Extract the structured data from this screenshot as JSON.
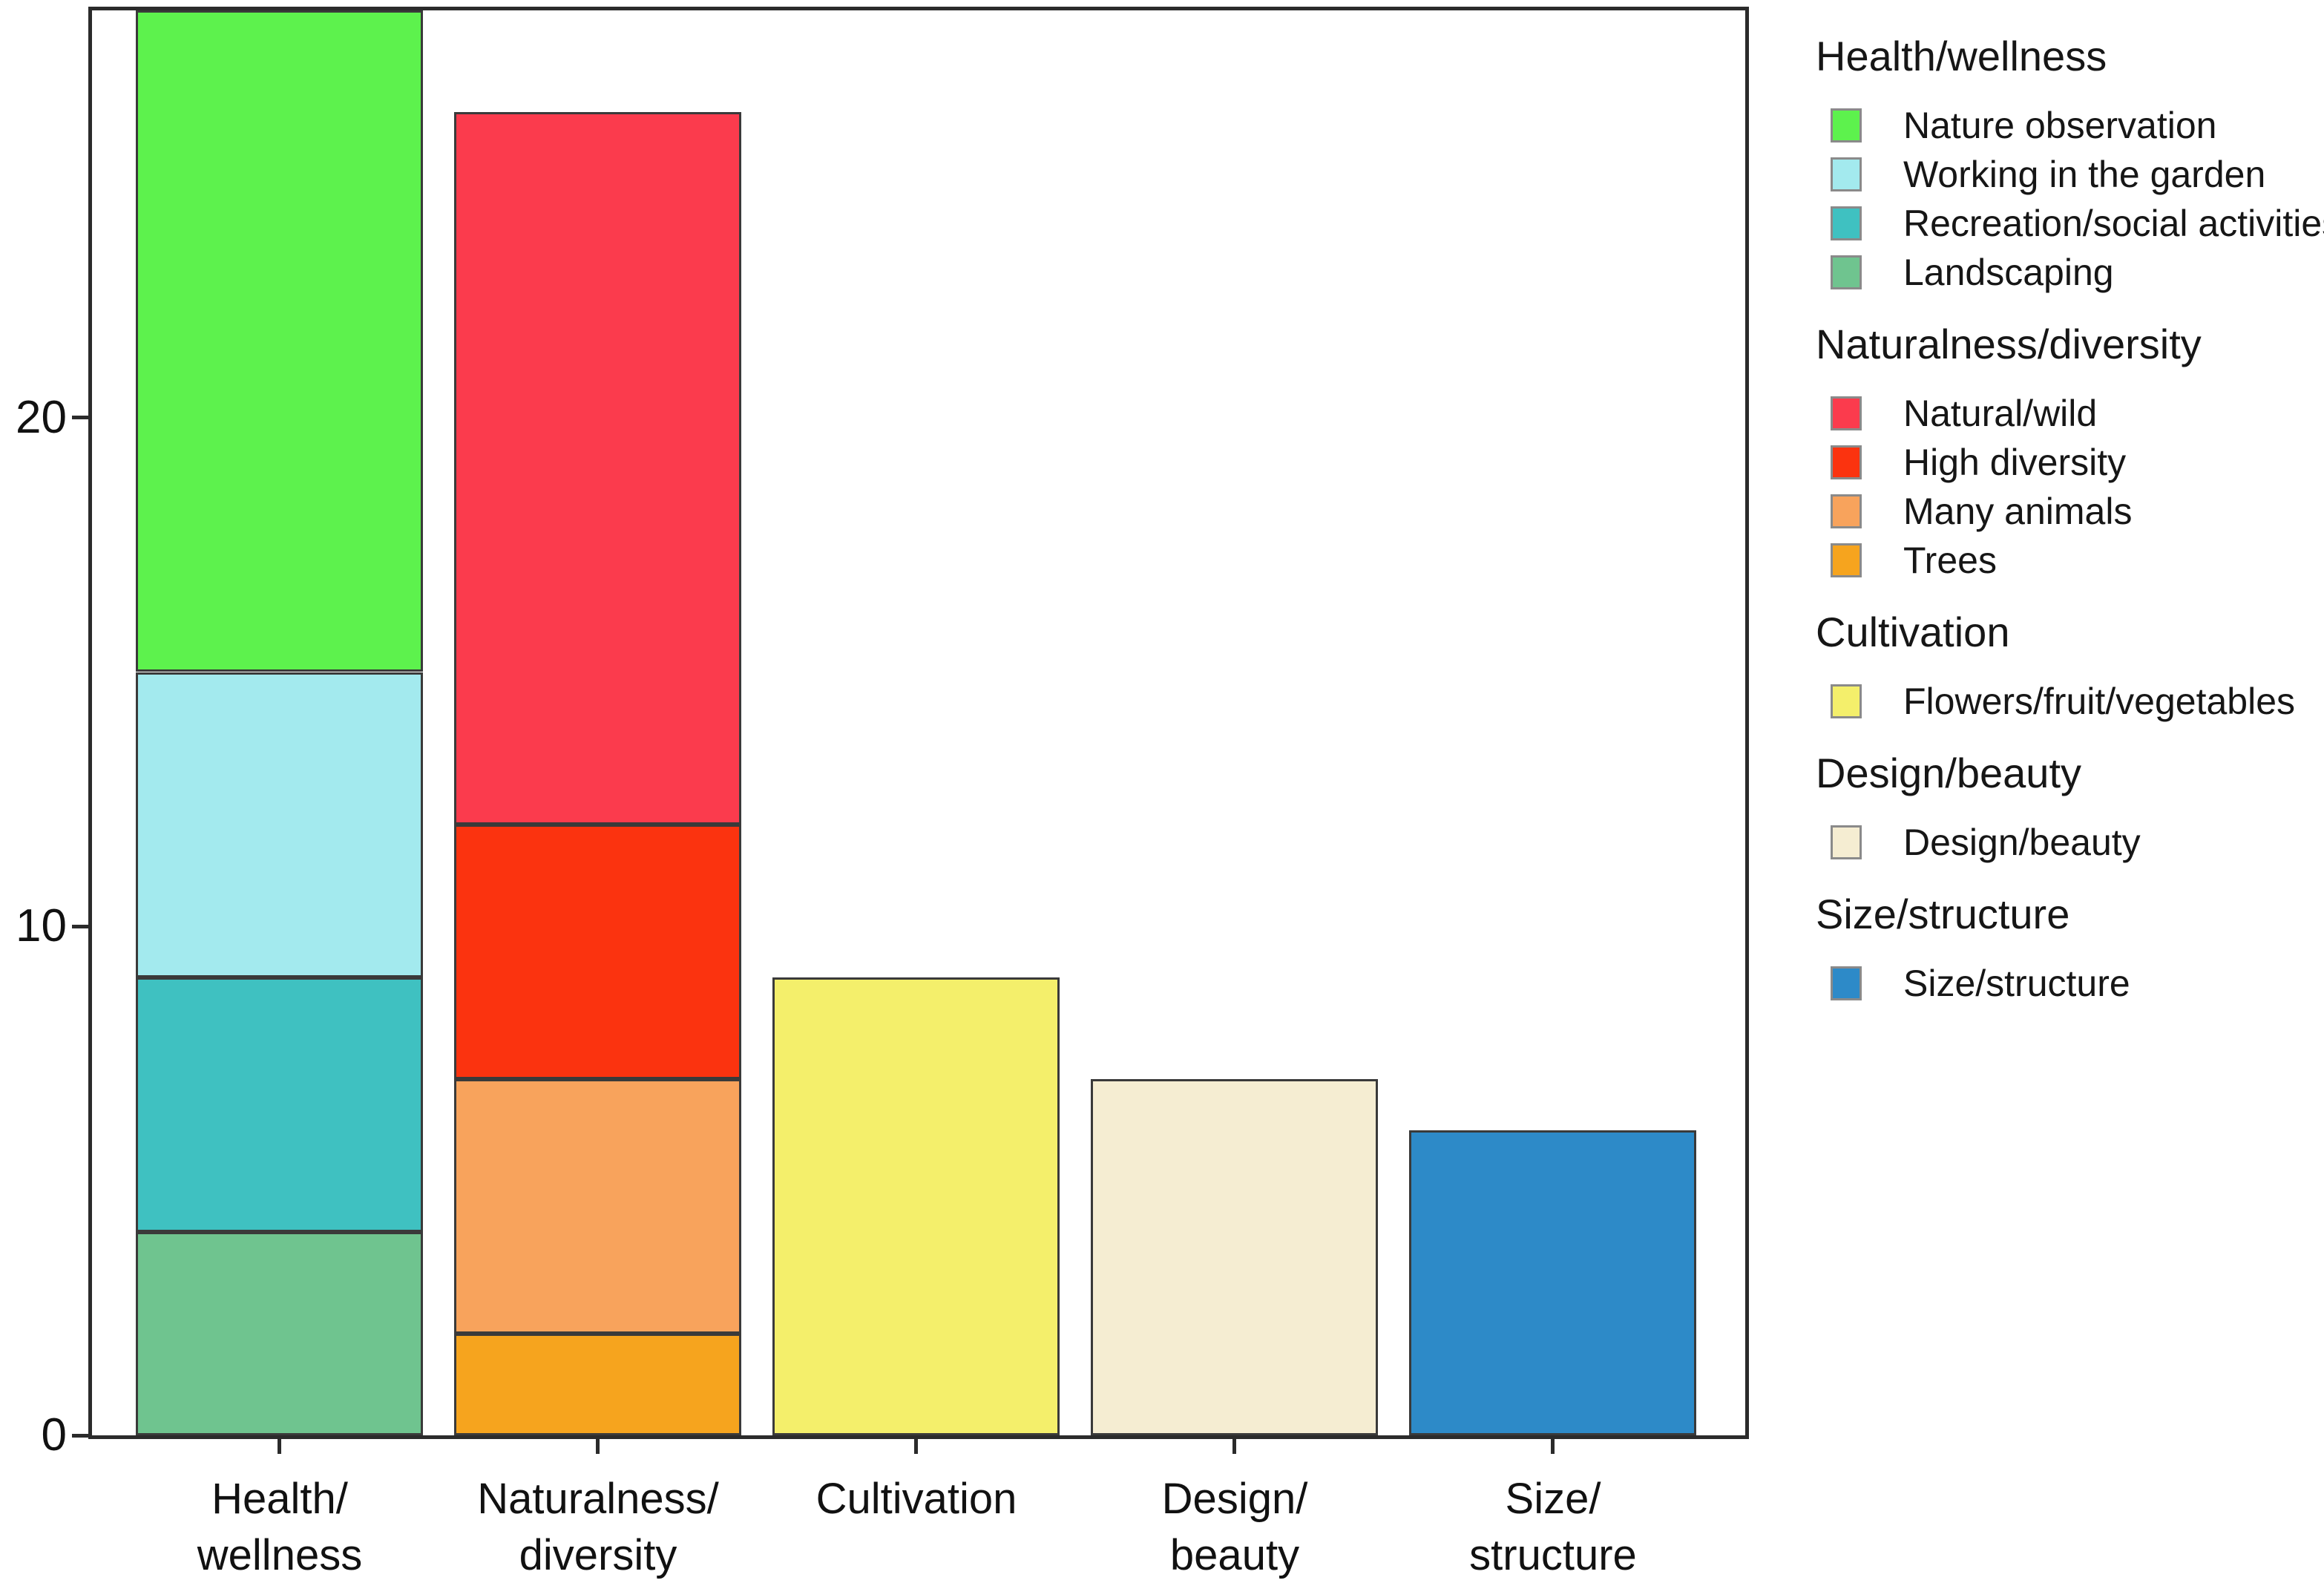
{
  "chart_data": {
    "type": "bar",
    "stacked": true,
    "title": "",
    "xlabel": "",
    "ylabel": "",
    "ylim": [
      0,
      28
    ],
    "y_ticks": [
      0,
      10,
      20
    ],
    "grid": false,
    "legend_position": "right",
    "axis_color": "#2b2b2b",
    "bar_edge_color": "#3a3a3a",
    "bars": [
      {
        "category": "Health/wellness",
        "category_lines": "Health/\nwellness",
        "total": 28,
        "segments": [
          {
            "label": "Landscaping",
            "value": 4,
            "color": "#6fc48f"
          },
          {
            "label": "Recreation/social activities",
            "value": 5,
            "color": "#3fc1c1"
          },
          {
            "label": "Working in the garden",
            "value": 6,
            "color": "#a3eaee"
          },
          {
            "label": "Nature observation",
            "value": 13,
            "color": "#5df24d"
          }
        ]
      },
      {
        "category": "Naturalness/diversity",
        "category_lines": "Naturalness/\ndiversity",
        "total": 26,
        "segments": [
          {
            "label": "Trees",
            "value": 2,
            "color": "#f6a41e"
          },
          {
            "label": "Many animals",
            "value": 5,
            "color": "#f8a35c"
          },
          {
            "label": "High diversity",
            "value": 5,
            "color": "#fb330f"
          },
          {
            "label": "Natural/wild",
            "value": 14,
            "color": "#fb3b4d"
          }
        ]
      },
      {
        "category": "Cultivation",
        "category_lines": "Cultivation",
        "total": 9,
        "segments": [
          {
            "label": "Flowers/fruit/vegetables",
            "value": 9,
            "color": "#f4ef6b"
          }
        ]
      },
      {
        "category": "Design/beauty",
        "category_lines": "Design/\nbeauty",
        "total": 7,
        "segments": [
          {
            "label": "Design/beauty",
            "value": 7,
            "color": "#f5edd2"
          }
        ]
      },
      {
        "category": "Size/structure",
        "category_lines": "Size/\nstructure",
        "total": 6,
        "segments": [
          {
            "label": "Size/structure",
            "value": 6,
            "color": "#2d8ac8"
          }
        ]
      }
    ],
    "legend_sections": [
      {
        "header": "Health/wellness",
        "items": [
          {
            "label": "Nature observation",
            "color": "#5df24d"
          },
          {
            "label": "Working in the garden",
            "color": "#a3eaee"
          },
          {
            "label": "Recreation/social activities",
            "color": "#3fc1c1"
          },
          {
            "label": "Landscaping",
            "color": "#6fc48f"
          }
        ]
      },
      {
        "header": "Naturalness/diversity",
        "items": [
          {
            "label": "Natural/wild",
            "color": "#fb3b4d"
          },
          {
            "label": "High diversity",
            "color": "#fb330f"
          },
          {
            "label": "Many animals",
            "color": "#f8a35c"
          },
          {
            "label": "Trees",
            "color": "#f6a41e"
          }
        ]
      },
      {
        "header": "Cultivation",
        "items": [
          {
            "label": "Flowers/fruit/vegetables",
            "color": "#f4ef6b"
          }
        ]
      },
      {
        "header": "Design/beauty",
        "items": [
          {
            "label": "Design/beauty",
            "color": "#f5edd2"
          }
        ]
      },
      {
        "header": "Size/structure",
        "items": [
          {
            "label": "Size/structure",
            "color": "#2d8ac8"
          }
        ]
      }
    ]
  }
}
